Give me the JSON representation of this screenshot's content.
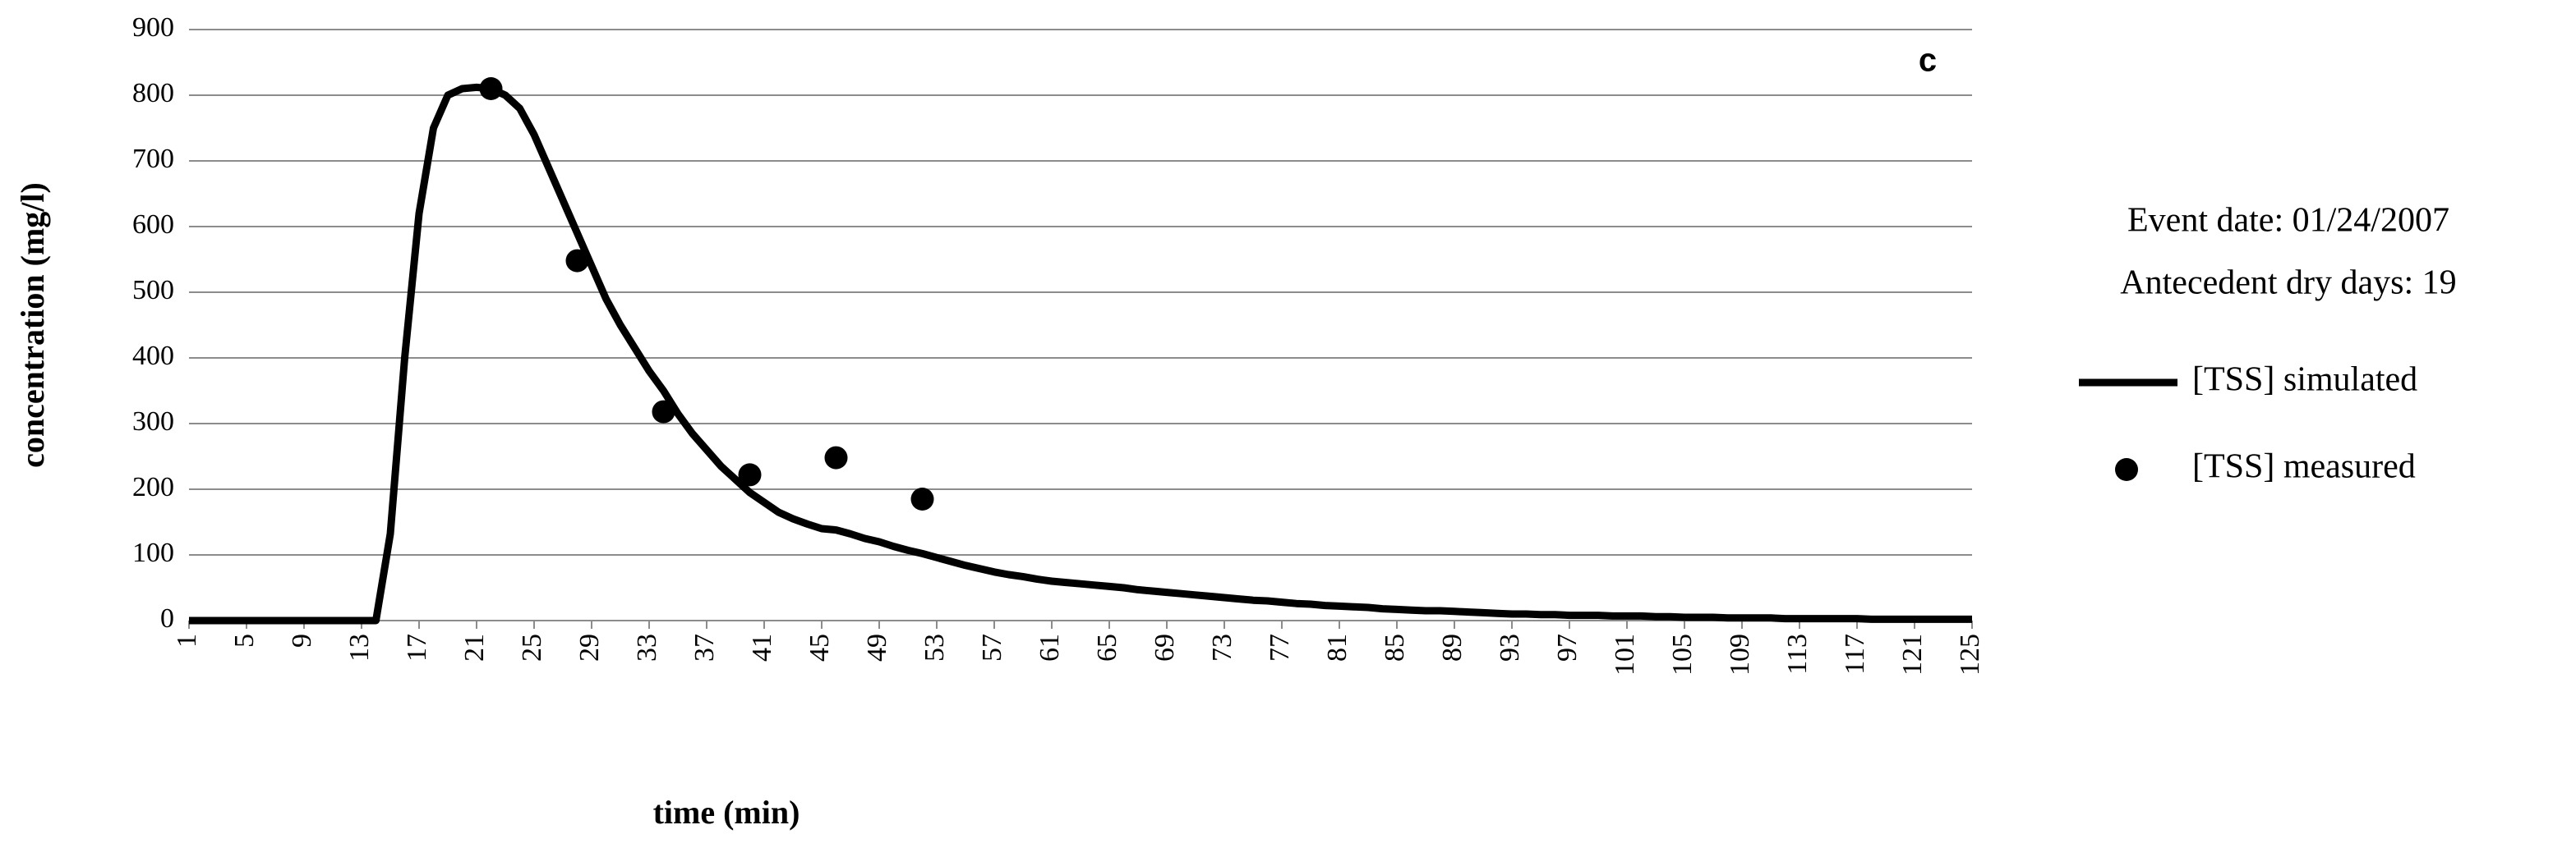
{
  "chart_data": {
    "type": "line",
    "panel_label": "c",
    "xlabel": "time (min)",
    "ylabel": "concentration (mg/l)",
    "annotations": [
      "Event date: 01/24/2007",
      "Antecedent dry days: 19"
    ],
    "xlim": [
      1,
      125
    ],
    "xticks": [
      1,
      5,
      9,
      13,
      17,
      21,
      25,
      29,
      33,
      37,
      41,
      45,
      49,
      53,
      57,
      61,
      65,
      69,
      73,
      77,
      81,
      85,
      89,
      93,
      97,
      101,
      105,
      109,
      113,
      117,
      121,
      125
    ],
    "ylim": [
      0,
      900
    ],
    "yticks": [
      0,
      100,
      200,
      300,
      400,
      500,
      600,
      700,
      800,
      900
    ],
    "grid": true,
    "legend": "right",
    "series": [
      {
        "name": "[TSS] simulated",
        "color": "#000000",
        "mark": "line",
        "x": [
          1,
          2,
          3,
          4,
          5,
          6,
          7,
          8,
          9,
          10,
          11,
          12,
          13,
          14,
          15,
          16,
          17,
          18,
          19,
          20,
          21,
          22,
          23,
          24,
          25,
          26,
          27,
          28,
          29,
          30,
          31,
          32,
          33,
          34,
          35,
          36,
          37,
          38,
          39,
          40,
          41,
          42,
          43,
          44,
          45,
          46,
          47,
          48,
          49,
          50,
          51,
          52,
          53,
          54,
          55,
          56,
          57,
          58,
          59,
          60,
          61,
          62,
          63,
          64,
          65,
          66,
          67,
          68,
          69,
          70,
          71,
          72,
          73,
          74,
          75,
          76,
          77,
          78,
          79,
          80,
          81,
          82,
          83,
          84,
          85,
          86,
          87,
          88,
          89,
          90,
          91,
          92,
          93,
          94,
          95,
          96,
          97,
          98,
          99,
          100,
          101,
          102,
          103,
          104,
          105,
          106,
          107,
          108,
          109,
          110,
          111,
          112,
          113,
          114,
          115,
          116,
          117,
          118,
          119,
          120,
          121,
          122,
          123,
          124,
          125
        ],
        "values": [
          0,
          0,
          0,
          0,
          0,
          0,
          0,
          0,
          0,
          0,
          0,
          0,
          0,
          0,
          132,
          400,
          620,
          750,
          800,
          810,
          812,
          810,
          800,
          780,
          740,
          690,
          640,
          590,
          540,
          490,
          450,
          415,
          380,
          350,
          315,
          285,
          260,
          235,
          215,
          195,
          180,
          165,
          155,
          147,
          140,
          138,
          132,
          125,
          120,
          113,
          107,
          102,
          96,
          90,
          84,
          79,
          74,
          70,
          67,
          63,
          60,
          58,
          56,
          54,
          52,
          50,
          47,
          45,
          43,
          41,
          39,
          37,
          35,
          33,
          31,
          30,
          28,
          26,
          25,
          23,
          22,
          21,
          20,
          18,
          17,
          16,
          15,
          15,
          14,
          13,
          12,
          11,
          10,
          10,
          9,
          9,
          8,
          8,
          8,
          7,
          7,
          7,
          6,
          6,
          5,
          5,
          5,
          4,
          4,
          4,
          4,
          3,
          3,
          3,
          3,
          3,
          3,
          2,
          2,
          2,
          2,
          2,
          2,
          2,
          2
        ]
      },
      {
        "name": "[TSS] measured",
        "color": "#000000",
        "mark": "marker",
        "x": [
          22,
          28,
          34,
          40,
          46,
          52
        ],
        "values": [
          810,
          548,
          318,
          222,
          248,
          185
        ]
      }
    ]
  }
}
